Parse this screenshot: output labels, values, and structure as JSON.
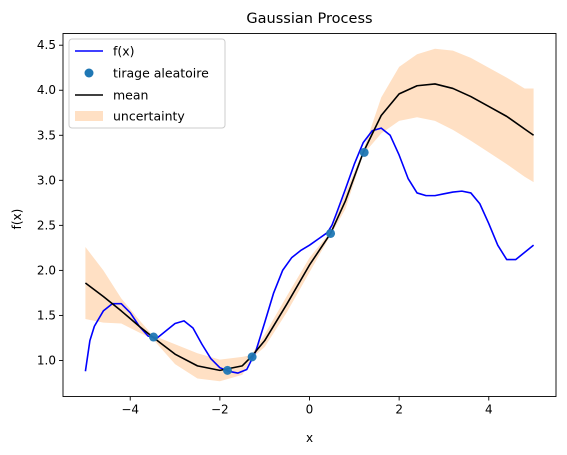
{
  "chart_data": {
    "type": "line",
    "title": "Gaussian Process",
    "xlabel": "x",
    "ylabel": "f(x)",
    "xlim": [
      -5.5,
      5.5
    ],
    "ylim": [
      0.6,
      4.63
    ],
    "x_ticks": [
      -4,
      -2,
      0,
      2,
      4
    ],
    "x_tick_labels": [
      "−4",
      "−2",
      "0",
      "2",
      "4"
    ],
    "y_ticks": [
      1.0,
      1.5,
      2.0,
      2.5,
      3.0,
      3.5,
      4.0,
      4.5
    ],
    "y_tick_labels": [
      "1.0",
      "1.5",
      "2.0",
      "2.5",
      "3.0",
      "3.5",
      "4.0",
      "4.5"
    ],
    "grid": false,
    "legend_position": "top-left",
    "series": [
      {
        "name": "f(x)",
        "kind": "line",
        "color": "#0000ff",
        "x": [
          -5.0,
          -4.9,
          -4.8,
          -4.6,
          -4.4,
          -4.2,
          -4.0,
          -3.8,
          -3.6,
          -3.4,
          -3.2,
          -3.0,
          -2.8,
          -2.6,
          -2.4,
          -2.2,
          -2.0,
          -1.8,
          -1.6,
          -1.4,
          -1.2,
          -1.0,
          -0.8,
          -0.6,
          -0.4,
          -0.2,
          0.0,
          0.2,
          0.4,
          0.5,
          0.6,
          0.8,
          1.0,
          1.2,
          1.4,
          1.6,
          1.8,
          2.0,
          2.2,
          2.4,
          2.6,
          2.8,
          3.0,
          3.2,
          3.4,
          3.6,
          3.8,
          4.0,
          4.2,
          4.4,
          4.6,
          4.8,
          5.0
        ],
        "y": [
          0.88,
          1.22,
          1.38,
          1.55,
          1.63,
          1.63,
          1.53,
          1.38,
          1.27,
          1.25,
          1.33,
          1.41,
          1.44,
          1.36,
          1.18,
          1.02,
          0.92,
          0.88,
          0.86,
          0.9,
          1.1,
          1.42,
          1.75,
          2.0,
          2.14,
          2.22,
          2.28,
          2.35,
          2.42,
          2.5,
          2.63,
          2.9,
          3.18,
          3.42,
          3.55,
          3.58,
          3.5,
          3.28,
          3.02,
          2.86,
          2.83,
          2.83,
          2.85,
          2.87,
          2.88,
          2.86,
          2.74,
          2.52,
          2.28,
          2.12,
          2.12,
          2.2,
          2.28
        ]
      },
      {
        "name": "tirage aleatoire",
        "kind": "scatter",
        "color": "#1f77b4",
        "x": [
          -3.48,
          -1.83,
          -1.28,
          0.47,
          1.22
        ],
        "y": [
          1.26,
          0.89,
          1.04,
          2.41,
          3.31
        ]
      },
      {
        "name": "mean",
        "kind": "line",
        "color": "#000000",
        "x": [
          -5.0,
          -4.6,
          -4.2,
          -3.8,
          -3.5,
          -3.0,
          -2.5,
          -2.0,
          -1.5,
          -1.3,
          -1.0,
          -0.5,
          0.0,
          0.47,
          0.8,
          1.2,
          1.6,
          2.0,
          2.4,
          2.8,
          3.2,
          3.6,
          4.0,
          4.4,
          4.8,
          5.0
        ],
        "y": [
          1.86,
          1.71,
          1.55,
          1.38,
          1.26,
          1.07,
          0.94,
          0.89,
          0.94,
          1.04,
          1.22,
          1.63,
          2.06,
          2.41,
          2.77,
          3.31,
          3.72,
          3.96,
          4.05,
          4.07,
          4.02,
          3.93,
          3.82,
          3.71,
          3.57,
          3.5
        ]
      },
      {
        "name": "uncertainty",
        "kind": "band",
        "color": "#ffe0c4",
        "x": [
          -5.0,
          -4.6,
          -4.2,
          -3.8,
          -3.5,
          -3.0,
          -2.5,
          -2.0,
          -1.5,
          -1.3,
          -1.0,
          -0.5,
          0.0,
          0.47,
          0.8,
          1.2,
          1.6,
          2.0,
          2.4,
          2.8,
          3.2,
          3.6,
          4.0,
          4.4,
          4.8,
          5.0
        ],
        "lower": [
          1.46,
          1.42,
          1.41,
          1.31,
          1.24,
          0.96,
          0.8,
          0.77,
          0.84,
          1.02,
          1.15,
          1.54,
          1.98,
          2.39,
          2.68,
          3.29,
          3.52,
          3.66,
          3.7,
          3.66,
          3.56,
          3.44,
          3.31,
          3.18,
          3.04,
          2.98
        ],
        "upper": [
          2.26,
          2.0,
          1.69,
          1.45,
          1.28,
          1.18,
          1.08,
          1.01,
          1.04,
          1.06,
          1.29,
          1.72,
          2.14,
          2.43,
          2.86,
          3.33,
          3.92,
          4.26,
          4.4,
          4.46,
          4.44,
          4.36,
          4.25,
          4.14,
          4.02,
          4.02
        ]
      }
    ]
  }
}
